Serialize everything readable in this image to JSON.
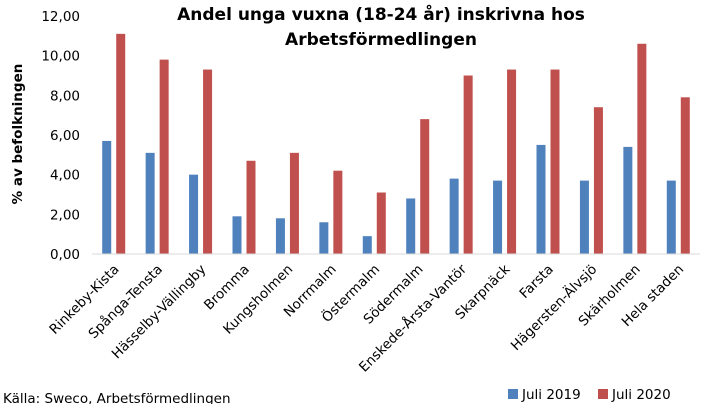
{
  "chart_data": {
    "type": "bar",
    "title_lines": [
      "Andel unga vuxna (18-24 år) inskrivna hos",
      "Arbetsförmedlingen"
    ],
    "ylabel": "% av befolkningen",
    "xlabel": "",
    "ylim": [
      0,
      12
    ],
    "yticks": [
      "0,00",
      "2,00",
      "4,00",
      "6,00",
      "8,00",
      "10,00",
      "12,00"
    ],
    "grid": false,
    "legend_position": "bottom-right",
    "categories": [
      "Rinkeby-Kista",
      "Spånga-Tensta",
      "Hässelby-Vällingby",
      "Bromma",
      "Kungsholmen",
      "Norrmalm",
      "Östermalm",
      "Södermalm",
      "Enskede-Årsta-Vantör",
      "Skarpnäck",
      "Farsta",
      "Hägersten-Älvsjö",
      "Skärholmen",
      "Hela staden"
    ],
    "series": [
      {
        "name": "Juli 2019",
        "color": "#4f81bd",
        "values": [
          5.7,
          5.1,
          4.0,
          1.9,
          1.8,
          1.6,
          0.9,
          2.8,
          3.8,
          3.7,
          5.5,
          3.7,
          5.4,
          3.7
        ]
      },
      {
        "name": "Juli 2020",
        "color": "#c0504d",
        "values": [
          11.1,
          9.8,
          9.3,
          4.7,
          5.1,
          4.2,
          3.1,
          6.8,
          9.0,
          9.3,
          9.3,
          7.4,
          10.6,
          7.9
        ]
      }
    ],
    "source": "Källa: Sweco, Arbetsförmedlingen"
  }
}
